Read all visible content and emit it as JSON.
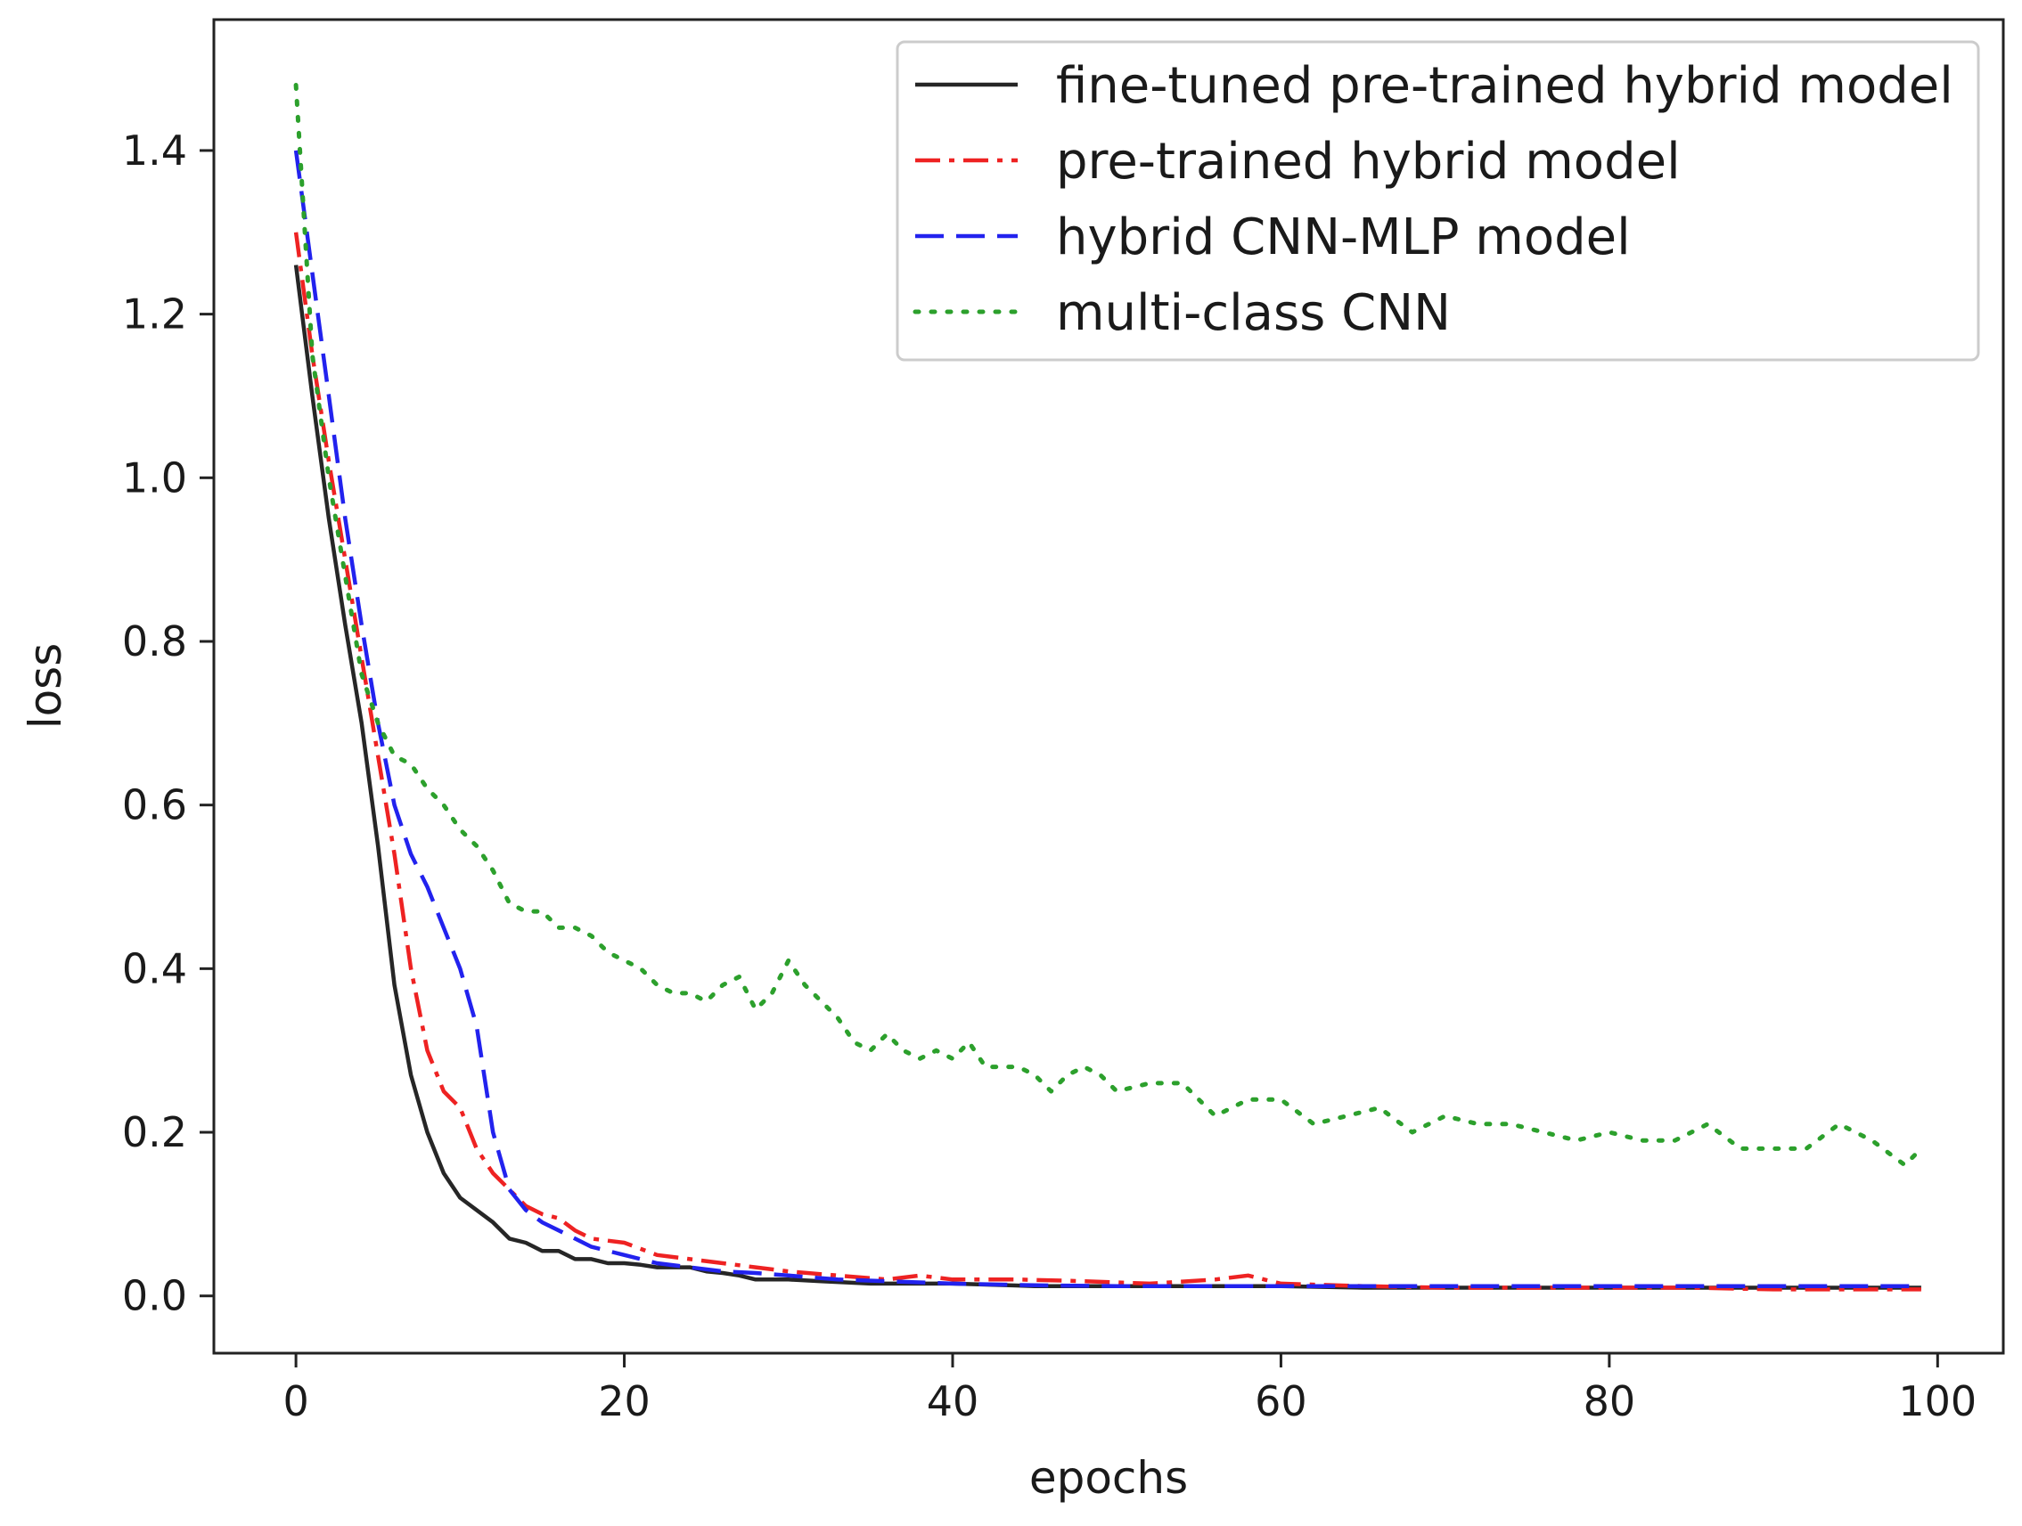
{
  "chart_data": {
    "type": "line",
    "title": "",
    "xlabel": "epochs",
    "ylabel": "loss",
    "xlim": [
      -5,
      104
    ],
    "ylim": [
      -0.07,
      1.56
    ],
    "xticks": [
      0,
      20,
      40,
      60,
      80,
      100
    ],
    "yticks": [
      0.0,
      0.2,
      0.4,
      0.6,
      0.8,
      1.0,
      1.2,
      1.4
    ],
    "xtick_labels": [
      "0",
      "20",
      "40",
      "60",
      "80",
      "100"
    ],
    "ytick_labels": [
      "0.0",
      "0.2",
      "0.4",
      "0.6",
      "0.8",
      "1.0",
      "1.2",
      "1.4"
    ],
    "grid": false,
    "legend_position": "top-right",
    "series": [
      {
        "name": "fine-tuned pre-trained hybrid model",
        "color": "#262626",
        "dash": "solid",
        "x": [
          0,
          1,
          2,
          3,
          4,
          5,
          6,
          7,
          8,
          9,
          10,
          11,
          12,
          13,
          14,
          15,
          16,
          17,
          18,
          19,
          20,
          21,
          22,
          23,
          24,
          25,
          26,
          27,
          28,
          29,
          30,
          32,
          35,
          38,
          40,
          45,
          50,
          55,
          60,
          65,
          70,
          75,
          80,
          85,
          90,
          95,
          99
        ],
        "y": [
          1.26,
          1.1,
          0.95,
          0.82,
          0.7,
          0.55,
          0.38,
          0.27,
          0.2,
          0.15,
          0.12,
          0.105,
          0.09,
          0.07,
          0.065,
          0.055,
          0.055,
          0.045,
          0.045,
          0.04,
          0.04,
          0.038,
          0.035,
          0.035,
          0.035,
          0.03,
          0.028,
          0.025,
          0.02,
          0.02,
          0.02,
          0.018,
          0.015,
          0.015,
          0.015,
          0.012,
          0.012,
          0.012,
          0.012,
          0.01,
          0.01,
          0.01,
          0.01,
          0.01,
          0.01,
          0.01,
          0.01
        ]
      },
      {
        "name": "pre-trained hybrid model",
        "color": "#ee2222",
        "dash": "dashdot",
        "x": [
          0,
          1,
          2,
          3,
          4,
          5,
          6,
          7,
          8,
          9,
          10,
          11,
          12,
          13,
          14,
          15,
          16,
          17,
          18,
          20,
          22,
          24,
          26,
          28,
          30,
          33,
          36,
          38,
          40,
          44,
          48,
          52,
          56,
          58,
          60,
          65,
          70,
          75,
          80,
          85,
          90,
          95,
          99
        ],
        "y": [
          1.3,
          1.15,
          1.02,
          0.9,
          0.78,
          0.66,
          0.54,
          0.4,
          0.3,
          0.25,
          0.23,
          0.18,
          0.15,
          0.13,
          0.11,
          0.1,
          0.095,
          0.08,
          0.07,
          0.065,
          0.05,
          0.045,
          0.04,
          0.035,
          0.03,
          0.025,
          0.02,
          0.025,
          0.02,
          0.02,
          0.018,
          0.015,
          0.02,
          0.025,
          0.015,
          0.012,
          0.01,
          0.01,
          0.01,
          0.01,
          0.008,
          0.008,
          0.008
        ]
      },
      {
        "name": "hybrid CNN-MLP model",
        "color": "#2222ee",
        "dash": "dashed",
        "x": [
          0,
          1,
          2,
          3,
          4,
          5,
          6,
          7,
          8,
          9,
          10,
          11,
          12,
          13,
          14,
          15,
          16,
          17,
          18,
          20,
          22,
          24,
          26,
          28,
          30,
          33,
          36,
          40,
          45,
          50,
          55,
          60,
          65,
          70,
          75,
          80,
          85,
          90,
          95,
          99
        ],
        "y": [
          1.4,
          1.25,
          1.1,
          0.95,
          0.82,
          0.7,
          0.6,
          0.54,
          0.5,
          0.45,
          0.4,
          0.33,
          0.2,
          0.13,
          0.105,
          0.09,
          0.08,
          0.07,
          0.06,
          0.05,
          0.04,
          0.035,
          0.03,
          0.028,
          0.025,
          0.02,
          0.018,
          0.015,
          0.013,
          0.012,
          0.012,
          0.012,
          0.012,
          0.012,
          0.012,
          0.012,
          0.012,
          0.012,
          0.012,
          0.012
        ]
      },
      {
        "name": "multi-class CNN",
        "color": "#2ca02c",
        "dash": "dotted",
        "x": [
          0,
          1,
          2,
          3,
          4,
          5,
          6,
          7,
          8,
          9,
          10,
          11,
          12,
          13,
          14,
          15,
          16,
          17,
          18,
          19,
          20,
          21,
          22,
          23,
          24,
          25,
          26,
          27,
          28,
          29,
          30,
          31,
          32,
          33,
          34,
          35,
          36,
          37,
          38,
          39,
          40,
          41,
          42,
          43,
          44,
          45,
          46,
          47,
          48,
          49,
          50,
          52,
          54,
          56,
          58,
          60,
          62,
          64,
          66,
          68,
          70,
          72,
          74,
          76,
          78,
          80,
          82,
          84,
          86,
          88,
          90,
          92,
          94,
          96,
          98,
          99
        ],
        "y": [
          1.48,
          1.15,
          1.0,
          0.88,
          0.76,
          0.7,
          0.66,
          0.65,
          0.62,
          0.6,
          0.57,
          0.55,
          0.52,
          0.48,
          0.47,
          0.47,
          0.45,
          0.45,
          0.44,
          0.42,
          0.41,
          0.4,
          0.38,
          0.37,
          0.37,
          0.36,
          0.38,
          0.39,
          0.35,
          0.37,
          0.41,
          0.38,
          0.36,
          0.34,
          0.31,
          0.3,
          0.32,
          0.3,
          0.29,
          0.3,
          0.29,
          0.31,
          0.28,
          0.28,
          0.28,
          0.27,
          0.25,
          0.27,
          0.28,
          0.27,
          0.25,
          0.26,
          0.26,
          0.22,
          0.24,
          0.24,
          0.21,
          0.22,
          0.23,
          0.2,
          0.22,
          0.21,
          0.21,
          0.2,
          0.19,
          0.2,
          0.19,
          0.19,
          0.21,
          0.18,
          0.18,
          0.18,
          0.21,
          0.19,
          0.16,
          0.18
        ]
      }
    ]
  }
}
